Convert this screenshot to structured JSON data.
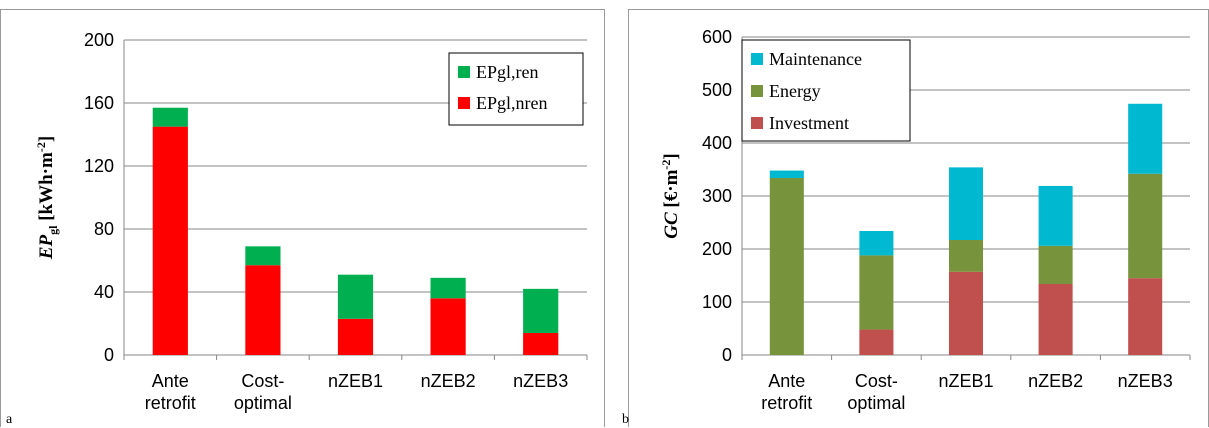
{
  "panels": {
    "a": {
      "letter": "a"
    },
    "b": {
      "letter": "b"
    }
  },
  "chart_data": [
    {
      "type": "bar",
      "stacked": true,
      "categories": [
        [
          "Ante",
          "retrofit"
        ],
        [
          "Cost-",
          "optimal"
        ],
        [
          "nZEB1"
        ],
        [
          "nZEB2"
        ],
        [
          "nZEB3"
        ]
      ],
      "ylabel": {
        "main": "EP",
        "sub": "gl",
        "unit": " [kWh·m",
        "sup": "-2",
        "close": "]"
      },
      "ylim": [
        0,
        200
      ],
      "yticks": [
        0,
        40,
        80,
        120,
        160,
        200
      ],
      "grid": true,
      "legend_position": "top-right",
      "legend_order": [
        1,
        0
      ],
      "series": [
        {
          "name": "EPgl,nren",
          "color": "#ff0000",
          "values": [
            145,
            57,
            23,
            36,
            14
          ]
        },
        {
          "name": "EPgl,ren",
          "color": "#00b050",
          "values": [
            12,
            12,
            28,
            13,
            28
          ]
        }
      ]
    },
    {
      "type": "bar",
      "stacked": true,
      "categories": [
        [
          "Ante",
          "retrofit"
        ],
        [
          "Cost-",
          "optimal"
        ],
        [
          "nZEB1"
        ],
        [
          "nZEB2"
        ],
        [
          "nZEB3"
        ]
      ],
      "ylabel": {
        "main": "GC",
        "sub": "",
        "unit": " [€·m",
        "sup": "-2",
        "close": "]"
      },
      "ylim": [
        0,
        600
      ],
      "yticks": [
        0,
        100,
        200,
        300,
        400,
        500,
        600
      ],
      "grid": true,
      "legend_position": "top-left",
      "legend_order": [
        2,
        1,
        0
      ],
      "series": [
        {
          "name": "Investment",
          "color": "#c0504d",
          "values": [
            0,
            48,
            157,
            134,
            145
          ]
        },
        {
          "name": "Energy",
          "color": "#77933c",
          "values": [
            334,
            140,
            60,
            72,
            197
          ]
        },
        {
          "name": "Maintenance",
          "color": "#00b8d0",
          "values": [
            14,
            46,
            137,
            113,
            132
          ]
        }
      ]
    }
  ]
}
